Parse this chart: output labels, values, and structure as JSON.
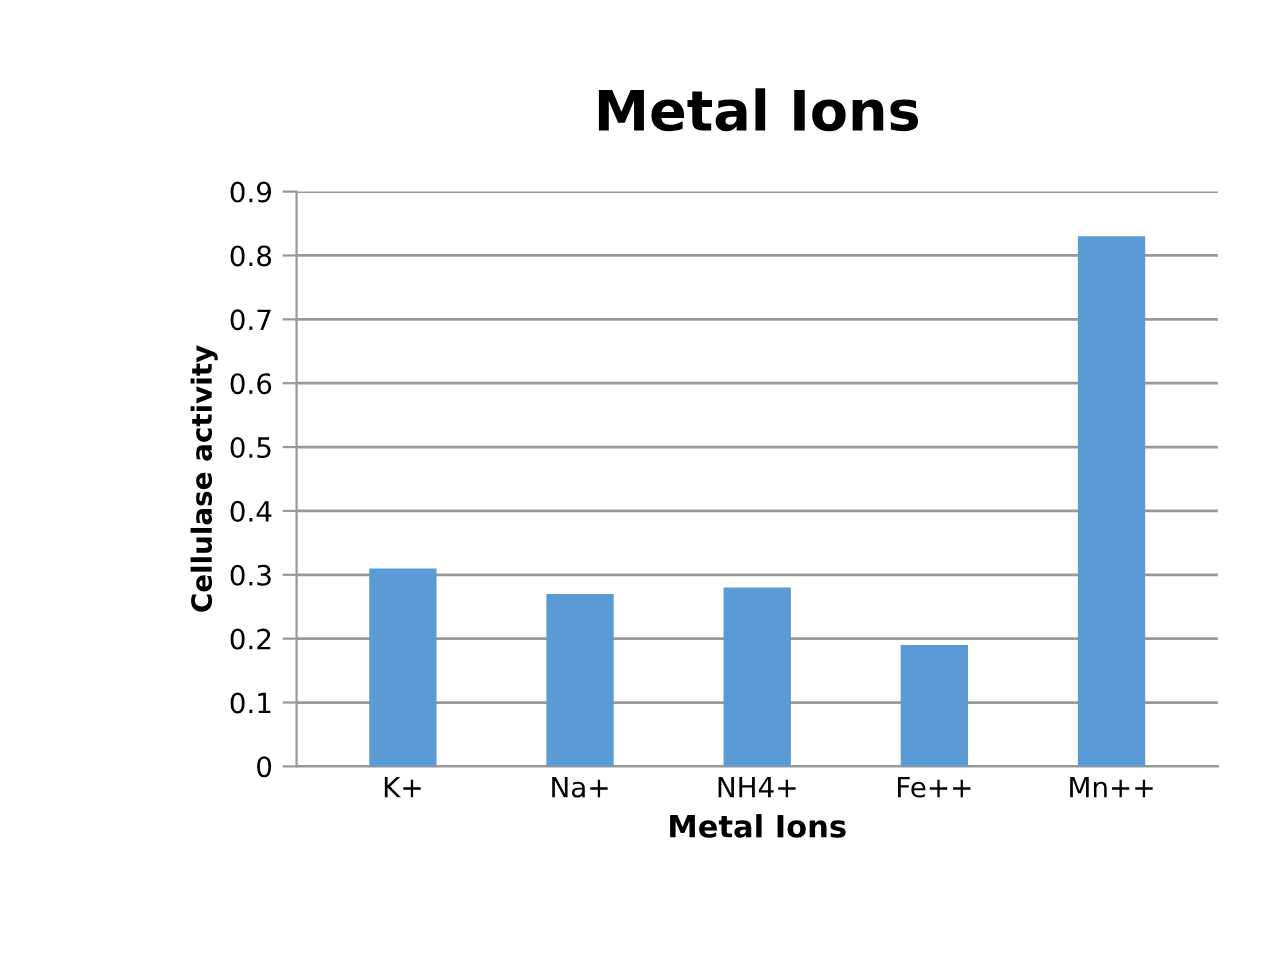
{
  "chart_data": {
    "type": "bar",
    "title": "Metal Ions",
    "xlabel": "Metal Ions",
    "ylabel": "Cellulase activity",
    "categories": [
      "K+",
      "Na+",
      "NH4+",
      "Fe++",
      "Mn++"
    ],
    "values": [
      0.31,
      0.27,
      0.28,
      0.19,
      0.83
    ],
    "color": "#5b9bd5",
    "ylim": [
      0,
      0.9
    ],
    "yticks": [
      0,
      0.1,
      0.2,
      0.3,
      0.4,
      0.5,
      0.6,
      0.7,
      0.8,
      0.9
    ],
    "grid": "y"
  }
}
